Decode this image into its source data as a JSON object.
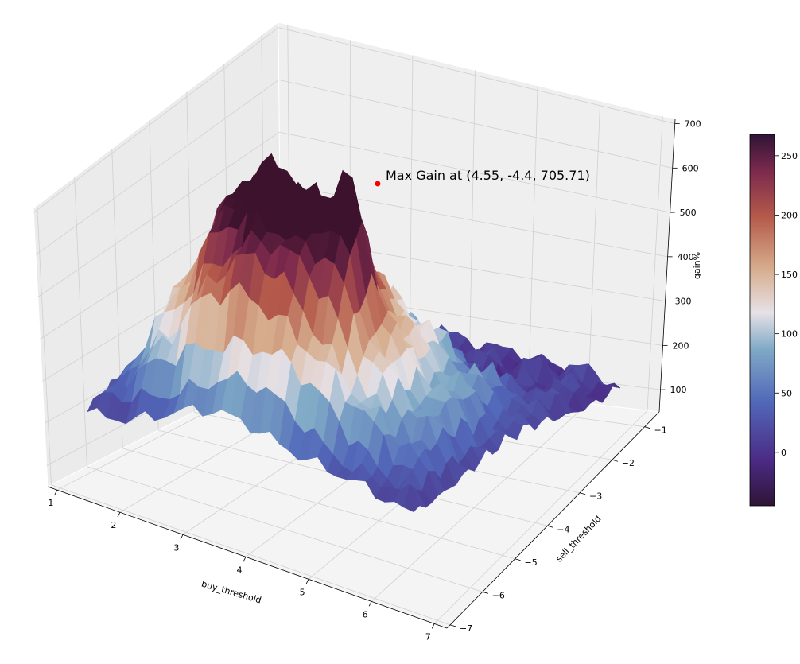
{
  "chart_data": {
    "type": "surface3d",
    "x_label": "buy_threshold",
    "y_label": "sell_threshold",
    "z_label": "gain%",
    "x_ticks": [
      "1",
      "2",
      "3",
      "4",
      "5",
      "6",
      "7"
    ],
    "y_ticks": [
      "−1",
      "−2",
      "−3",
      "−4",
      "−5",
      "−6",
      "−7"
    ],
    "z_ticks": [
      "100",
      "200",
      "300",
      "400",
      "500",
      "600",
      "700"
    ],
    "xlim": [
      1,
      7
    ],
    "ylim": [
      -7,
      -1
    ],
    "zlim": [
      50,
      710
    ],
    "colormap": "twilight_shifted",
    "colorbar": {
      "ticks": [
        "0",
        "50",
        "100",
        "150",
        "200",
        "250"
      ],
      "range": [
        -45,
        268
      ]
    },
    "annotation": {
      "text": "Max Gain at (4.55, -4.4, 705.71)",
      "point": [
        4.55,
        -4.4,
        705.71
      ],
      "marker_color": "#ff0000"
    },
    "grid": true
  }
}
